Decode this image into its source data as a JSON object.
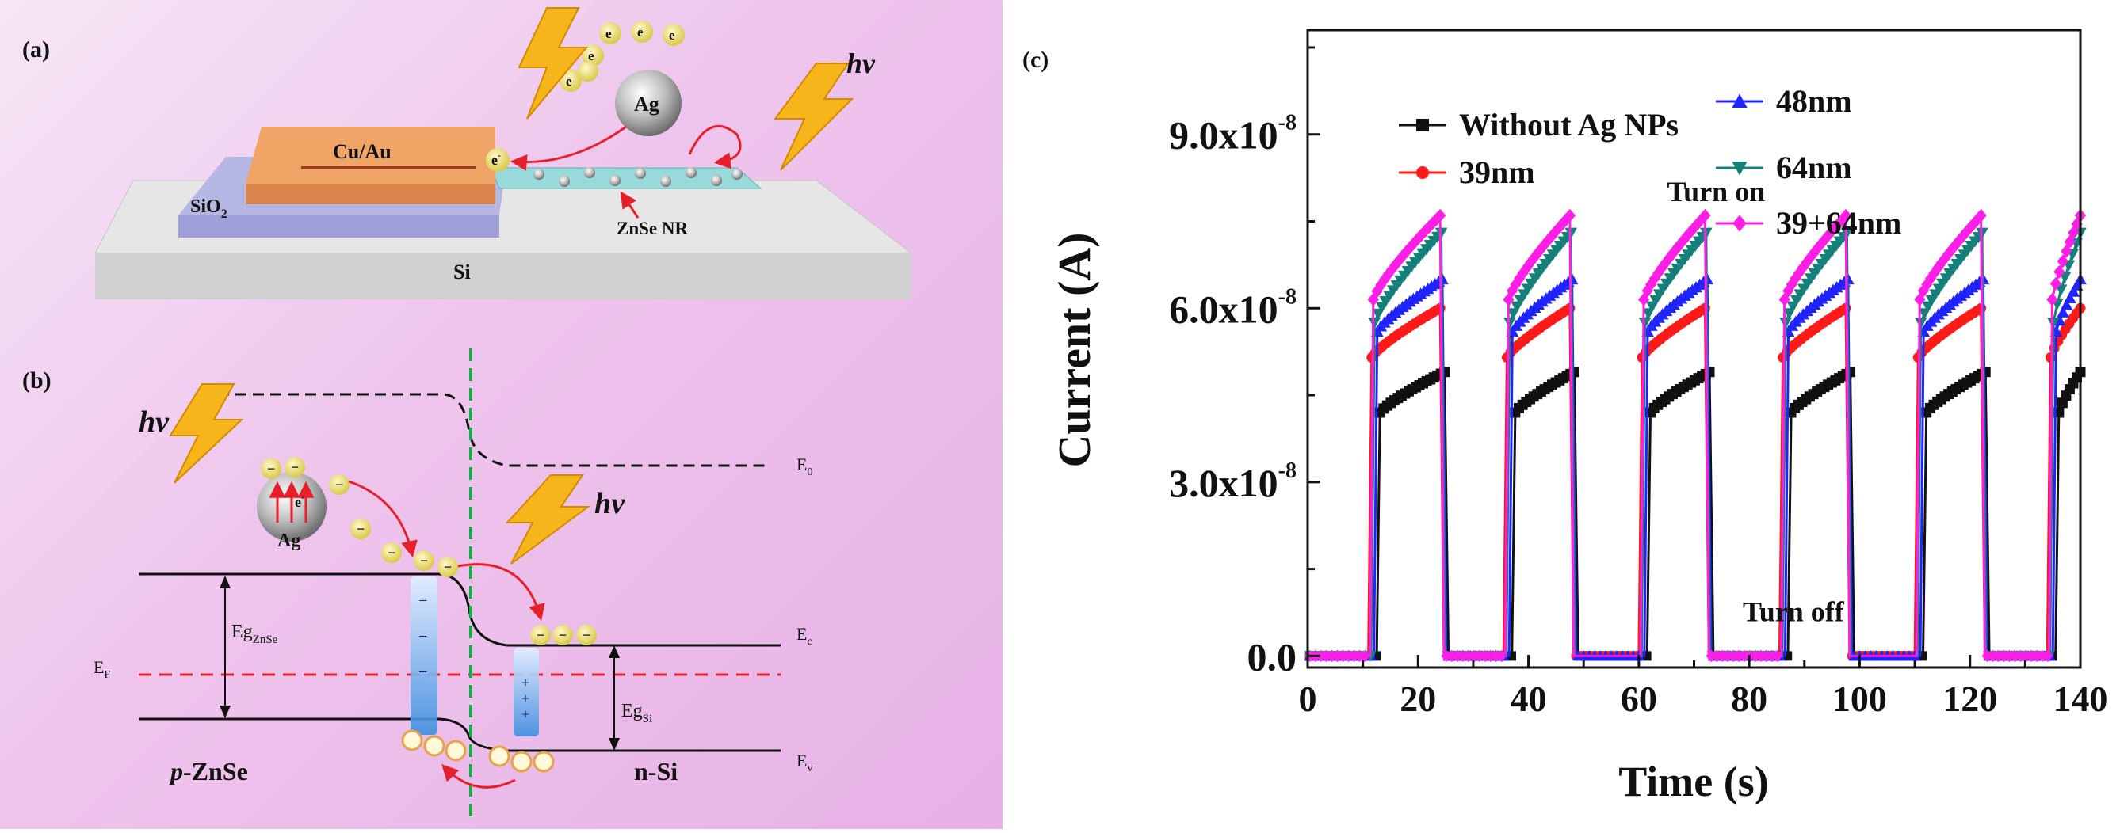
{
  "panels": {
    "a": {
      "label": "(a)",
      "contact_label": "Cu/Au",
      "oxide_label": "SiO",
      "oxide_sub": "2",
      "substrate_label": "Si",
      "nanoribbon_label": "ZnSe NR",
      "particle_label": "Ag",
      "photon_label": "hv",
      "electron_symbol": "e",
      "electron_sup": "-"
    },
    "b": {
      "label": "(b)",
      "photon_label": "hv",
      "particle_label": "Ag",
      "electron_symbol": "e",
      "electron_sup": "-",
      "minus_symbol": "−",
      "plus_symbol": "+",
      "e0_label": "E",
      "e0_sub": "0",
      "ec_label": "E",
      "ec_sub": "c",
      "ev_label": "E",
      "ev_sub": "v",
      "ef_label": "E",
      "ef_sub": "F",
      "eg_znse_label": "Eg",
      "eg_znse_sub": "ZnSe",
      "eg_si_label": "Eg",
      "eg_si_sub": "Si",
      "p_prefix": "p",
      "p_material": "-ZnSe",
      "n_material": "n-Si"
    },
    "c": {
      "label": "(c)"
    }
  },
  "chart_data": {
    "type": "line",
    "xlabel": "Time (s)",
    "ylabel": "Current (A)",
    "xlim": [
      0,
      140
    ],
    "ylim": [
      -0.2,
      10.8
    ],
    "y_multiplier_exponent": -8,
    "x_ticks": [
      0,
      20,
      40,
      60,
      80,
      100,
      120,
      140
    ],
    "y_ticks": [
      {
        "value": 0.0,
        "mantissa": "0.0",
        "exp": ""
      },
      {
        "value": 3.0,
        "mantissa": "3.0x10",
        "exp": "-8"
      },
      {
        "value": 6.0,
        "mantissa": "6.0x10",
        "exp": "-8"
      },
      {
        "value": 9.0,
        "mantissa": "9.0x10",
        "exp": "-8"
      }
    ],
    "grid": false,
    "legend_position": "top",
    "annotations": [
      {
        "text": "Turn on",
        "x": 74,
        "y": 7.85
      },
      {
        "text": "Turn off",
        "x": 88,
        "y": 0.6
      }
    ],
    "cycles": [
      {
        "on": 11,
        "off": 24
      },
      {
        "on": 35.5,
        "off": 47.5
      },
      {
        "on": 60,
        "off": 72
      },
      {
        "on": 85.5,
        "off": 97.5
      },
      {
        "on": 110,
        "off": 122
      },
      {
        "on": 134,
        "off": 140
      }
    ],
    "series": [
      {
        "name": "Without Ag NPs",
        "color": "#111111",
        "marker": "square",
        "on_delay": 1.5,
        "off_delay": 0.8,
        "start": 4.2,
        "end": 4.9
      },
      {
        "name": "39nm",
        "color": "#ff1a1a",
        "marker": "circle",
        "on_delay": 0.0,
        "off_delay": 0.0,
        "start": 5.15,
        "end": 6.0
      },
      {
        "name": "48nm",
        "color": "#1f24ff",
        "marker": "triangle-up",
        "on_delay": 1.0,
        "off_delay": 0.4,
        "start": 5.6,
        "end": 6.5
      },
      {
        "name": "64nm",
        "color": "#15807a",
        "marker": "triangle-down",
        "on_delay": 0.5,
        "off_delay": 0.2,
        "start": 5.75,
        "end": 7.3
      },
      {
        "name": "39+64nm",
        "color": "#ff1ee6",
        "marker": "diamond",
        "on_delay": 0.3,
        "off_delay": 0.0,
        "start": 6.15,
        "end": 7.6
      }
    ]
  }
}
